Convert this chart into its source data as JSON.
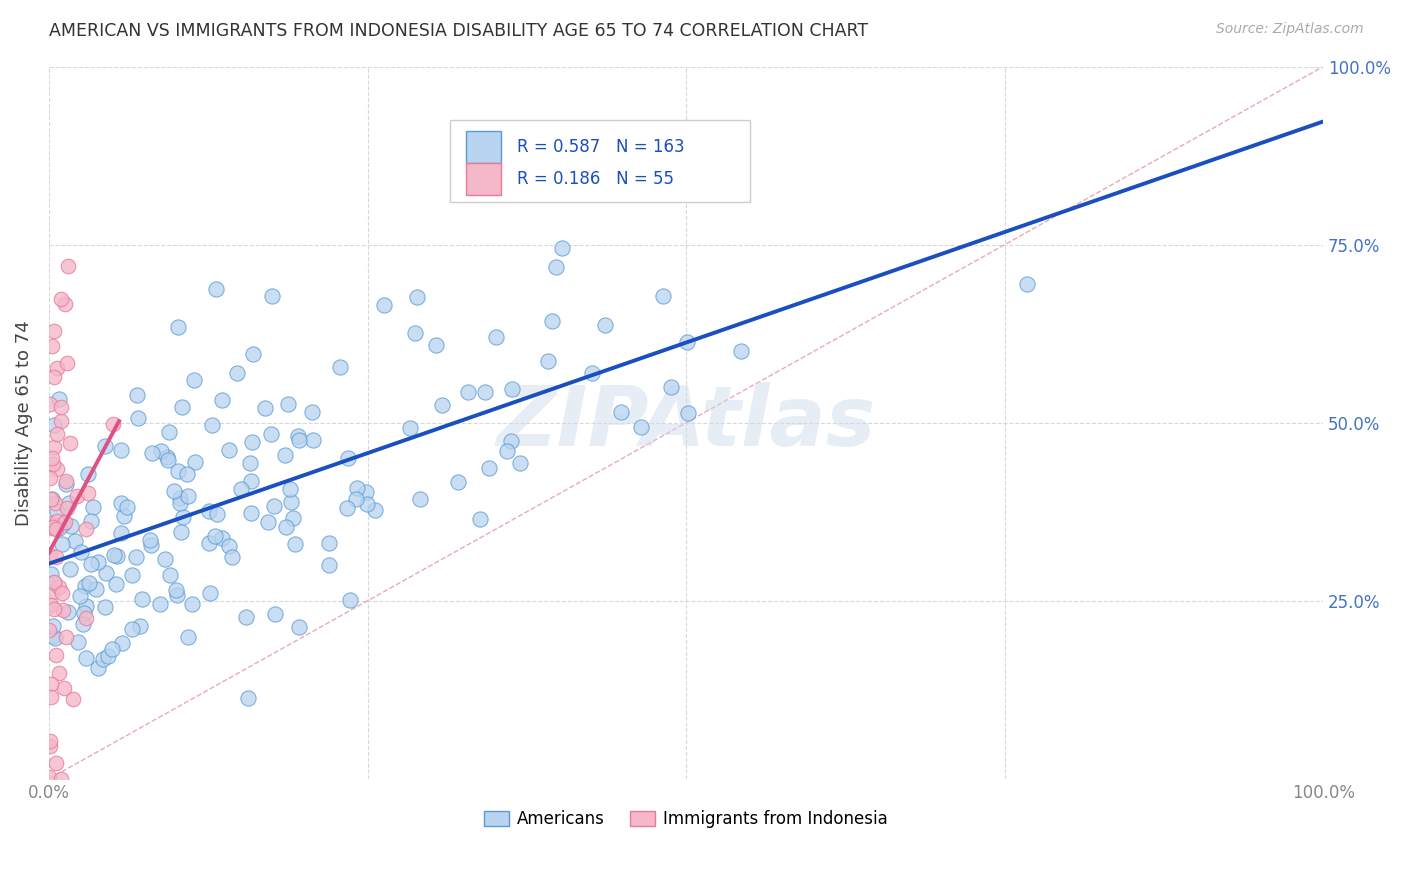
{
  "title": "AMERICAN VS IMMIGRANTS FROM INDONESIA DISABILITY AGE 65 TO 74 CORRELATION CHART",
  "source": "Source: ZipAtlas.com",
  "ylabel": "Disability Age 65 to 74",
  "xlim": [
    0,
    1.0
  ],
  "ylim": [
    0,
    1.0
  ],
  "ytick_positions": [
    0.25,
    0.5,
    0.75,
    1.0
  ],
  "ytick_labels": [
    "25.0%",
    "50.0%",
    "75.0%",
    "100.0%"
  ],
  "xtick_positions": [
    0,
    0.25,
    0.5,
    0.75,
    1.0
  ],
  "xtick_labels": [
    "0.0%",
    "",
    "",
    "",
    "100.0%"
  ],
  "americans_fill": "#b8d4f0",
  "americans_edge": "#5b9bd5",
  "indonesia_fill": "#f4b8c8",
  "indonesia_edge": "#e87a9a",
  "trend_am_color": "#1a4fbf",
  "trend_id_color": "#e05080",
  "diag_color": "#e0a0b0",
  "R_american": 0.587,
  "N_american": 163,
  "R_indonesia": 0.186,
  "N_indonesia": 55,
  "background_color": "#ffffff",
  "watermark": "ZIPAtlas",
  "grid_color": "#d8d8d8",
  "tick_color": "#888888",
  "right_tick_color": "#4472c4",
  "title_color": "#333333",
  "source_color": "#aaaaaa"
}
